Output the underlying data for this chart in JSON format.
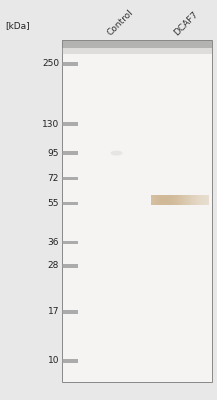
{
  "bg_color": "#e8e8e8",
  "gel_bg": "#f0efee",
  "ladder_labels": [
    "250",
    "130",
    "95",
    "72",
    "55",
    "36",
    "28",
    "17",
    "10"
  ],
  "ladder_kda": [
    250,
    130,
    95,
    72,
    55,
    36,
    28,
    17,
    10
  ],
  "ladder_color": "#999999",
  "top_band_color": "#777777",
  "col_labels": [
    "Control",
    "DCAF7"
  ],
  "col_label_color": "#333333",
  "col_label_fontsize": 6.5,
  "kdal_label": "[kDa]",
  "kdal_fontsize": 6.5,
  "marker_label_fontsize": 6.5,
  "main_band": {
    "kda": 57,
    "color": "#c8aa80",
    "alpha": 0.8
  },
  "faint_dot_kda": 95,
  "log_min": 0.9,
  "log_max": 2.51
}
